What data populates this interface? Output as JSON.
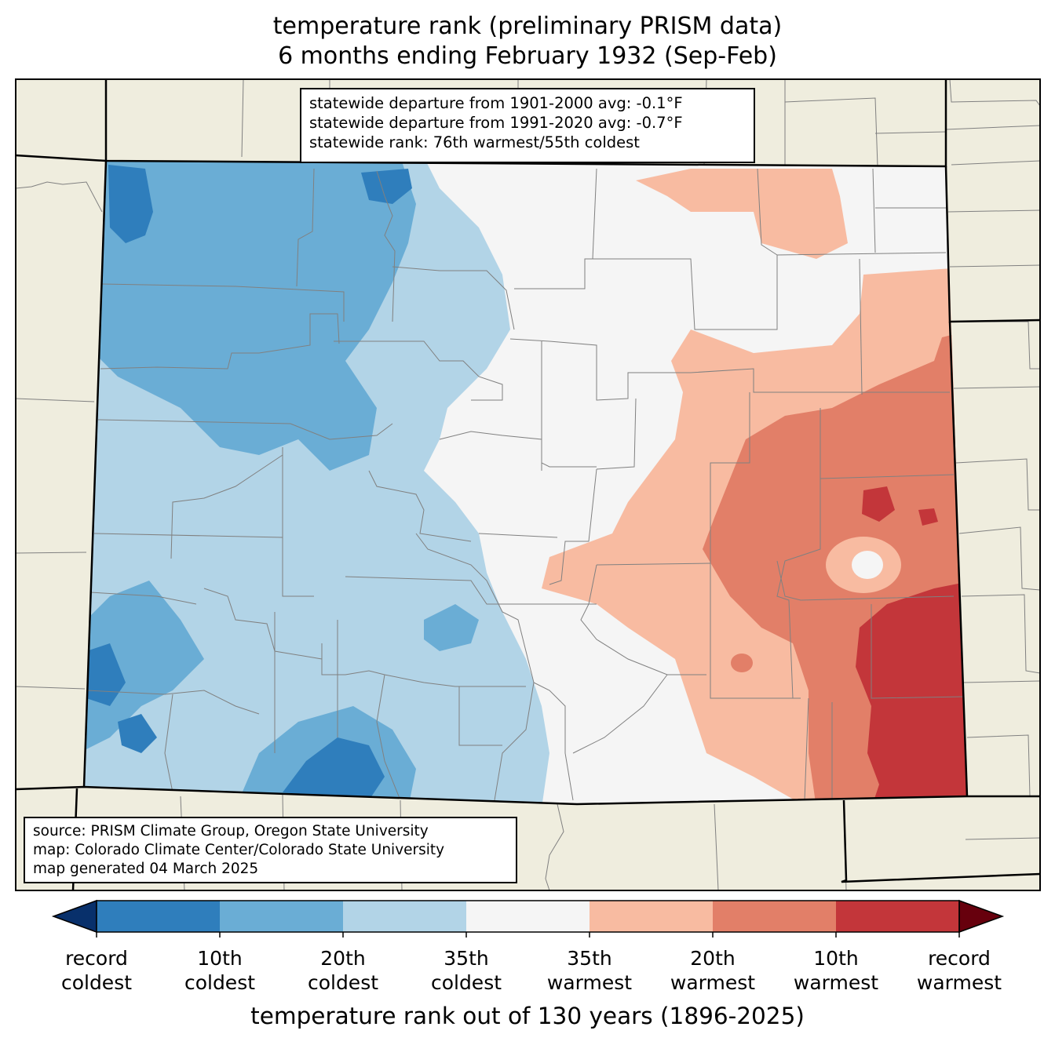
{
  "title": {
    "line1": "temperature rank (preliminary PRISM data)",
    "line2": "6 months ending February 1932 (Sep-Feb)"
  },
  "stats": {
    "line1": "statewide departure from 1901-2000 avg: -0.1°F",
    "line2": "statewide departure from 1991-2020 avg: -0.7°F",
    "line3": "statewide rank: 76th warmest/55th coldest"
  },
  "source": {
    "line1": "source: PRISM Climate Group, Oregon State University",
    "line2": "map: Colorado Climate Center/Colorado State University",
    "line3": "map generated 04 March 2025"
  },
  "colorbar": {
    "title": "temperature rank out of 130 years (1896-2025)",
    "labels": [
      {
        "line1": "record",
        "line2": "coldest"
      },
      {
        "line1": "10th",
        "line2": "coldest"
      },
      {
        "line1": "20th",
        "line2": "coldest"
      },
      {
        "line1": "35th",
        "line2": "coldest"
      },
      {
        "line1": "35th",
        "line2": "warmest"
      },
      {
        "line1": "20th",
        "line2": "warmest"
      },
      {
        "line1": "10th",
        "line2": "warmest"
      },
      {
        "line1": "record",
        "line2": "warmest"
      }
    ],
    "colors": {
      "below_record_cold": "#08306b",
      "record_to_10th_cold": "#2f7ebc",
      "10th_to_20th_cold": "#6aadd5",
      "20th_to_35th_cold": "#b2d4e7",
      "near_normal": "#f5f5f5",
      "35th_to_20th_warm": "#f8bba1",
      "20th_to_10th_warm": "#e27f68",
      "10th_to_record_warm": "#c3363a",
      "above_record_warm": "#67000d"
    }
  },
  "map_colors": {
    "background_land": "#efedde",
    "county_lines": "#808080",
    "state_lines": "#000000"
  }
}
